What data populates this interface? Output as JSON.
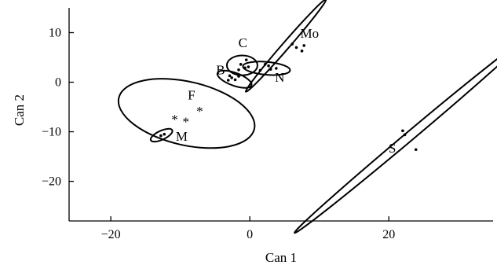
{
  "chart_data": {
    "type": "scatter",
    "xlabel": "Can 1",
    "ylabel": "Can 2",
    "xlim": [
      -26,
      35
    ],
    "ylim": [
      -28,
      15
    ],
    "xticks": [
      -20,
      0,
      20
    ],
    "yticks": [
      10,
      0,
      -10,
      -20
    ],
    "grid": false,
    "legend": "none",
    "groups": [
      {
        "label": "Mo",
        "ellipse": {
          "cx": 5.2,
          "cy": 7.4,
          "rx": 8.8,
          "ry": 0.7,
          "angle": -49
        },
        "points": [
          [
            6.1,
            7.7
          ],
          [
            6.7,
            7.0
          ],
          [
            7.5,
            6.3
          ],
          [
            7.8,
            7.4
          ]
        ],
        "marker": "dot"
      },
      {
        "label": "S",
        "ellipse": {
          "cx": 22.9,
          "cy": -11.0,
          "rx": 21.5,
          "ry": 0.9,
          "angle": -40
        },
        "points": [
          [
            22.0,
            -9.8
          ],
          [
            22.3,
            -10.6
          ],
          [
            23.9,
            -13.6
          ]
        ],
        "marker": "dot"
      },
      {
        "label": "C",
        "ellipse": {
          "cx": -1.1,
          "cy": 3.4,
          "rx": 2.2,
          "ry": 2.0,
          "angle": 0
        },
        "points": [
          [
            -0.5,
            4.5
          ],
          [
            -1.3,
            3.6
          ],
          [
            -0.7,
            2.9
          ],
          [
            -1.6,
            2.5
          ],
          [
            -0.2,
            3.1
          ]
        ],
        "marker": "dot"
      },
      {
        "label": "B",
        "ellipse": {
          "cx": -2.2,
          "cy": 0.6,
          "rx": 2.6,
          "ry": 1.3,
          "angle": 20
        },
        "points": [
          [
            -3.1,
            0.4
          ],
          [
            -2.6,
            0.9
          ],
          [
            -2.1,
            0.5
          ],
          [
            -1.6,
            1.2
          ],
          [
            -2.9,
            1.3
          ]
        ],
        "marker": "dot"
      },
      {
        "label": "N",
        "ellipse": {
          "cx": 2.4,
          "cy": 2.8,
          "rx": 3.4,
          "ry": 1.3,
          "angle": 5
        },
        "points": [
          [
            1.5,
            2.4
          ],
          [
            2.2,
            3.6
          ],
          [
            3.0,
            2.6
          ],
          [
            3.8,
            2.8
          ],
          [
            2.7,
            3.3
          ]
        ],
        "marker": "dot"
      },
      {
        "label": "F",
        "ellipse": {
          "cx": -9.1,
          "cy": -6.3,
          "rx": 10.0,
          "ry": 6.4,
          "angle": 13
        },
        "points": [
          [
            -10.8,
            -7.3
          ],
          [
            -9.2,
            -7.8
          ],
          [
            -7.2,
            -5.6
          ]
        ],
        "marker": "star"
      },
      {
        "label": "M",
        "ellipse": {
          "cx": -12.7,
          "cy": -10.7,
          "rx": 1.7,
          "ry": 0.9,
          "angle": -25
        },
        "points": [
          [
            -12.8,
            -10.8
          ],
          [
            -12.3,
            -10.5
          ]
        ],
        "marker": "dot"
      }
    ],
    "annotations": [
      {
        "text": "Mo",
        "x": 8.6,
        "y": 9.0
      },
      {
        "text": "C",
        "x": -1.0,
        "y": 7.1
      },
      {
        "text": "B",
        "x": -4.2,
        "y": 1.6
      },
      {
        "text": "N",
        "x": 4.3,
        "y": 0.1
      },
      {
        "text": "F",
        "x": -8.4,
        "y": -3.5
      },
      {
        "text": "M",
        "x": -9.8,
        "y": -11.8
      },
      {
        "text": "S",
        "x": 20.5,
        "y": -14.2
      }
    ]
  }
}
